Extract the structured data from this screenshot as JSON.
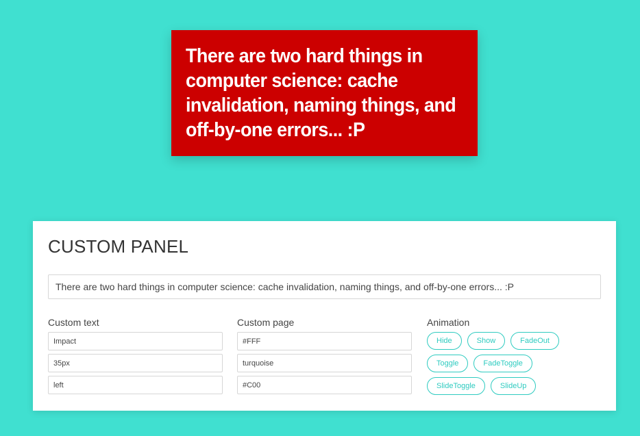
{
  "quote": {
    "text": "There are two hard things in computer science: cache invalidation, naming things, and off-by-one errors... :P"
  },
  "panel": {
    "title": "CUSTOM PANEL",
    "main_input_value": "There are two hard things in computer science: cache invalidation, naming things, and off-by-one errors... :P",
    "custom_text": {
      "label": "Custom text",
      "font_family": "Impact",
      "font_size": "35px",
      "align": "left"
    },
    "custom_page": {
      "label": "Custom page",
      "text_color": "#FFF",
      "page_bg": "turquoise",
      "box_bg": "#C00"
    },
    "animation": {
      "label": "Animation",
      "buttons": {
        "hide": "Hide",
        "show": "Show",
        "fadeout": "FadeOut",
        "toggle": "Toggle",
        "fadetoggle": "FadeToggle",
        "slidetoggle": "SlideToggle",
        "slideup": "SlideUp"
      }
    }
  },
  "colors": {
    "page_background": "#40E0D0",
    "quote_background": "#CC0000",
    "accent": "#2ECBC0"
  }
}
